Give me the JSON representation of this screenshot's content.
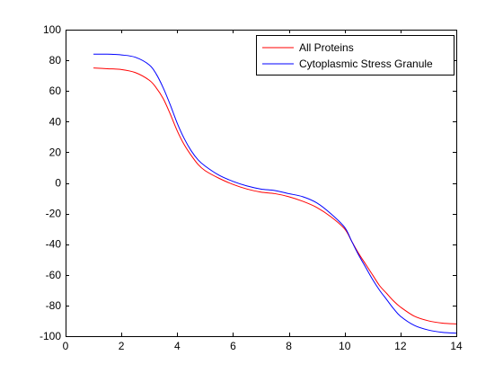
{
  "chart_data": {
    "type": "line",
    "title": "",
    "xlabel": "",
    "ylabel": "",
    "xlim": [
      0,
      14
    ],
    "ylim": [
      -100,
      100
    ],
    "xticks": [
      0,
      2,
      4,
      6,
      8,
      10,
      12,
      14
    ],
    "yticks": [
      100,
      80,
      60,
      40,
      20,
      0,
      -20,
      -40,
      -60,
      -80,
      -100
    ],
    "grid": false,
    "legend_position": "top-right",
    "series": [
      {
        "name": "All Proteins",
        "color": "#ff0000",
        "x": [
          1.0,
          1.5,
          2.0,
          2.5,
          3.0,
          3.25,
          3.5,
          3.75,
          4.0,
          4.25,
          4.5,
          4.75,
          5.0,
          5.5,
          6.0,
          6.5,
          7.0,
          7.5,
          8.0,
          8.5,
          9.0,
          9.5,
          10.0,
          10.25,
          10.5,
          10.75,
          11.0,
          11.25,
          11.5,
          11.75,
          12.0,
          12.5,
          13.0,
          13.5,
          14.0
        ],
        "y": [
          75,
          74.5,
          74,
          72,
          67,
          62,
          55,
          45,
          34,
          25,
          18,
          12,
          8,
          3,
          -1,
          -4,
          -6,
          -7,
          -9,
          -12,
          -16,
          -22,
          -30,
          -38,
          -46,
          -53,
          -60,
          -67,
          -72,
          -77,
          -81,
          -87,
          -90,
          -91.5,
          -92
        ]
      },
      {
        "name": "Cytoplasmic Stress Granule",
        "color": "#0000ff",
        "x": [
          1.0,
          1.5,
          2.0,
          2.5,
          3.0,
          3.25,
          3.5,
          3.75,
          4.0,
          4.25,
          4.5,
          4.75,
          5.0,
          5.5,
          6.0,
          6.5,
          7.0,
          7.5,
          8.0,
          8.5,
          9.0,
          9.5,
          10.0,
          10.25,
          10.5,
          10.75,
          11.0,
          11.25,
          11.5,
          11.75,
          12.0,
          12.5,
          13.0,
          13.5,
          14.0
        ],
        "y": [
          84,
          84,
          83.5,
          82,
          77,
          71,
          62,
          51,
          39,
          29,
          21,
          15,
          11,
          5,
          1,
          -2,
          -4,
          -5,
          -7,
          -9,
          -13,
          -20,
          -29,
          -38,
          -47,
          -55,
          -63,
          -70,
          -76,
          -82,
          -87,
          -93,
          -96,
          -97.5,
          -98
        ]
      }
    ]
  }
}
